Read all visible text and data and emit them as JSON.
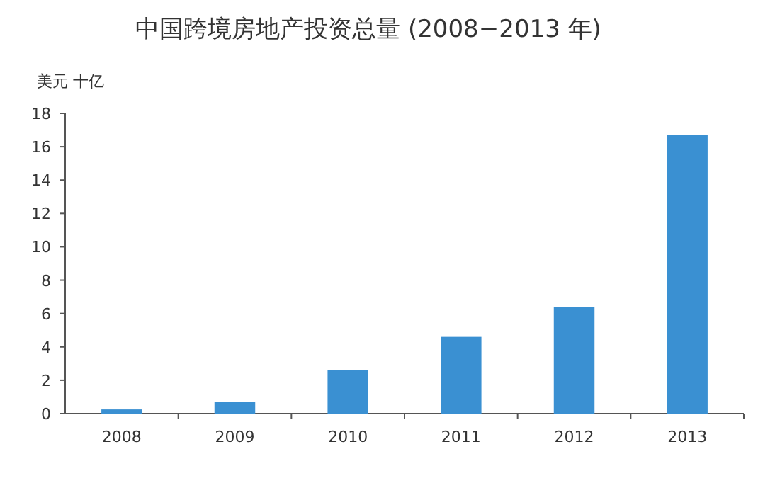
{
  "chart_data": {
    "type": "bar",
    "title": "中国跨境房地产投资总量 (2008−2013 年)",
    "ylabel": "美元 十亿",
    "categories": [
      "2008",
      "2009",
      "2010",
      "2011",
      "2012",
      "2013"
    ],
    "values": [
      0.25,
      0.7,
      2.6,
      4.6,
      6.4,
      16.7
    ],
    "color": "#3a90d2",
    "ylim": [
      0,
      18
    ],
    "yticks": [
      0,
      2,
      4,
      6,
      8,
      10,
      12,
      14,
      16,
      18
    ]
  }
}
